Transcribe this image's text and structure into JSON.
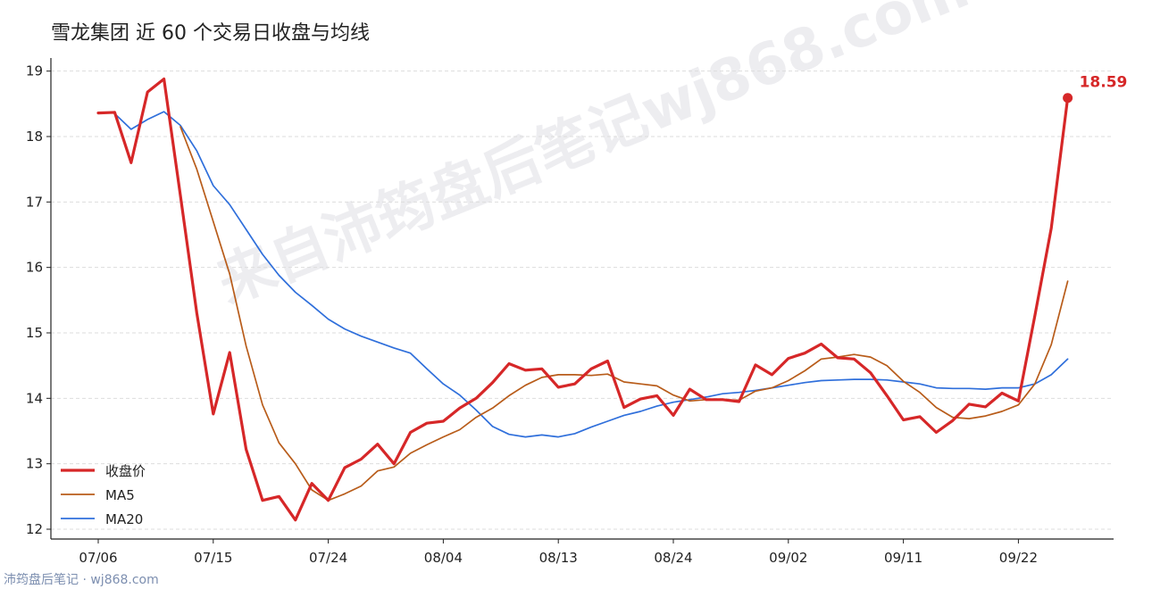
{
  "chart_data": {
    "type": "line",
    "title": "雪龙集团 近 60 个交易日收盘与均线",
    "xlabel": "",
    "ylabel": "",
    "ylim": [
      11.85,
      19.2
    ],
    "yticks": [
      12,
      13,
      14,
      15,
      16,
      17,
      18,
      19
    ],
    "xticks": [
      {
        "index": 0,
        "label": "07/06"
      },
      {
        "index": 7,
        "label": "07/15"
      },
      {
        "index": 14,
        "label": "07/24"
      },
      {
        "index": 21,
        "label": "08/04"
      },
      {
        "index": 28,
        "label": "08/13"
      },
      {
        "index": 35,
        "label": "08/24"
      },
      {
        "index": 42,
        "label": "09/02"
      },
      {
        "index": 49,
        "label": "09/11"
      },
      {
        "index": 56,
        "label": "09/22"
      }
    ],
    "grid": "horizontal-dashed",
    "legend_position": "bottom-left",
    "last_value_label": "18.59",
    "series": [
      {
        "name": "收盘价",
        "color": "#d62728",
        "values": [
          18.36,
          18.37,
          17.6,
          18.68,
          18.88,
          17.1,
          15.3,
          13.76,
          14.7,
          13.22,
          12.44,
          12.5,
          12.14,
          12.7,
          12.44,
          12.94,
          13.07,
          13.3,
          13.0,
          13.48,
          13.62,
          13.65,
          13.85,
          14.0,
          14.24,
          14.53,
          14.43,
          14.45,
          14.17,
          14.22,
          14.45,
          14.57,
          13.86,
          13.99,
          14.04,
          13.74,
          14.14,
          13.98,
          13.98,
          13.95,
          14.51,
          14.36,
          14.61,
          14.69,
          14.83,
          14.62,
          14.6,
          14.39,
          14.04,
          13.67,
          13.72,
          13.48,
          13.66,
          13.91,
          13.87,
          14.08,
          13.96,
          15.26,
          16.6,
          18.59
        ]
      },
      {
        "name": "MA5",
        "color": "#b85c1a",
        "values": [
          null,
          null,
          null,
          null,
          null,
          18.15,
          17.5,
          16.7,
          15.9,
          14.8,
          13.9,
          13.32,
          13.0,
          12.6,
          12.44,
          12.54,
          12.66,
          12.89,
          12.95,
          13.16,
          13.29,
          13.41,
          13.52,
          13.71,
          13.85,
          14.04,
          14.2,
          14.32,
          14.36,
          14.36,
          14.35,
          14.37,
          14.25,
          14.22,
          14.19,
          14.05,
          13.96,
          13.98,
          13.98,
          13.97,
          14.11,
          14.16,
          14.27,
          14.42,
          14.6,
          14.63,
          14.67,
          14.63,
          14.5,
          14.26,
          14.09,
          13.86,
          13.71,
          13.69,
          13.73,
          13.8,
          13.9,
          14.22,
          14.82,
          15.79
        ]
      },
      {
        "name": "MA20",
        "color": "#2f6fdb",
        "values": [
          null,
          18.35,
          18.11,
          18.26,
          18.38,
          18.17,
          17.78,
          17.25,
          16.96,
          16.58,
          16.2,
          15.88,
          15.62,
          15.42,
          15.21,
          15.06,
          14.95,
          14.86,
          14.77,
          14.69,
          14.45,
          14.22,
          14.05,
          13.82,
          13.57,
          13.45,
          13.41,
          13.44,
          13.41,
          13.46,
          13.56,
          13.65,
          13.74,
          13.8,
          13.88,
          13.94,
          13.98,
          14.02,
          14.07,
          14.09,
          14.12,
          14.16,
          14.2,
          14.24,
          14.27,
          14.28,
          14.29,
          14.29,
          14.28,
          14.25,
          14.22,
          14.16,
          14.15,
          14.15,
          14.14,
          14.16,
          14.16,
          14.22,
          14.36,
          14.6
        ]
      }
    ]
  },
  "watermark": "来自沛筠盘后笔记wj868.com",
  "footer": "沛筠盘后笔记 · wj868.com"
}
